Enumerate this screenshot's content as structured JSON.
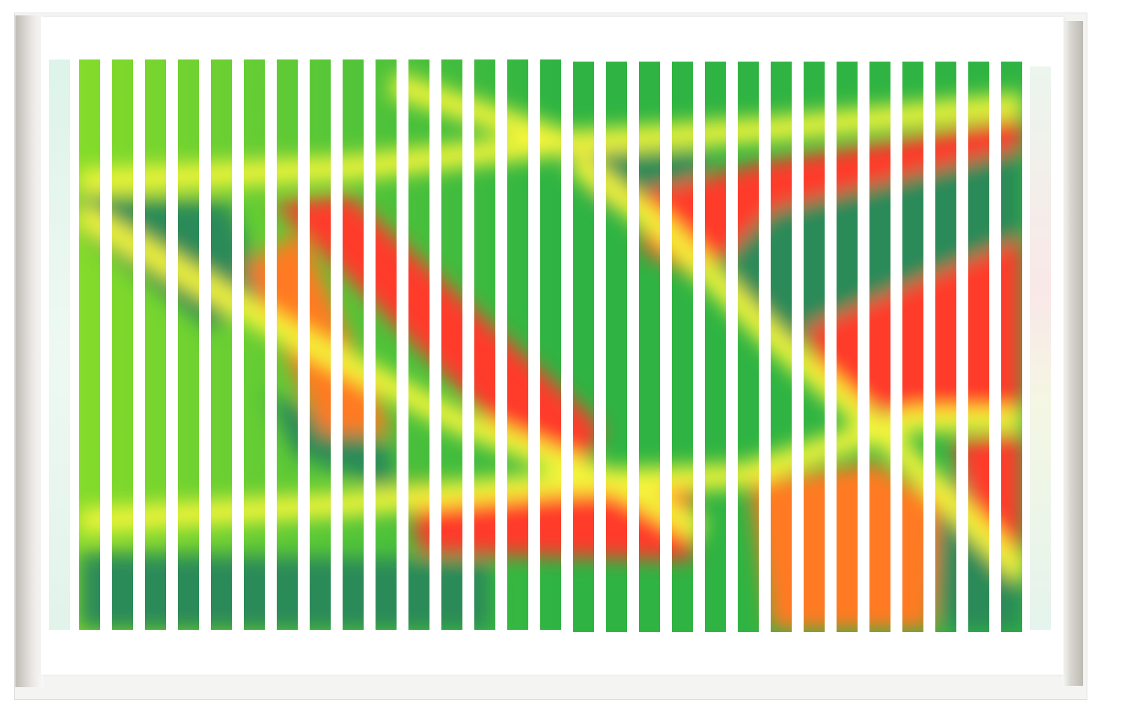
{
  "artwork": {
    "bar_count": 29,
    "colors": {
      "light_green": "#86dc2a",
      "green": "#2fb443",
      "dark_teal": "#2a8a58",
      "yellow": "#f4f53a",
      "red": "#ff3a2a",
      "orange": "#ff7a20",
      "frame": "#c4c2bb"
    }
  }
}
